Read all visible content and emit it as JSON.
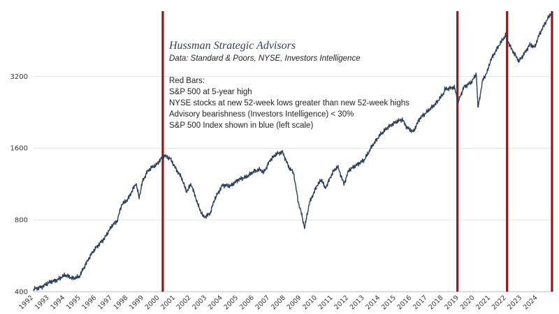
{
  "chart_data": {
    "type": "line",
    "title": "Hussman Strategic Advisors",
    "subtitle": "Data: Standard & Poors, NYSE, Investors Intelligence",
    "notes": [
      "Red Bars:",
      "S&P 500 at 5-year high",
      "NYSE stocks at new 52-week lows greater than new 52-week highs",
      "Advisory bearishness (Investors Intelligence) < 30%",
      "S&P 500 Index shown in blue (left scale)"
    ],
    "y_scale": "log",
    "ylim": [
      400,
      6000
    ],
    "y_ticks": [
      400,
      800,
      1600,
      3200
    ],
    "y_tick_labels": [
      "400",
      "800",
      "1600",
      "3200"
    ],
    "xlim": [
      1992.0,
      2024.9
    ],
    "x_ticks": [
      "1992",
      "1993",
      "1994",
      "1995",
      "1996",
      "1997",
      "1998",
      "1999",
      "2000",
      "2001",
      "2002",
      "2003",
      "2004",
      "2005",
      "2006",
      "2007",
      "2008",
      "2009",
      "2010",
      "2011",
      "2012",
      "2013",
      "2014",
      "2015",
      "2016",
      "2017",
      "2018",
      "2019",
      "2020",
      "2021",
      "2022",
      "2023",
      "2024"
    ],
    "grid": true,
    "series": [
      {
        "color": "#2c3e58",
        "x": [
          1992.0,
          1992.5,
          1993.0,
          1993.5,
          1994.0,
          1994.5,
          1994.9,
          1995.3,
          1995.7,
          1996.0,
          1996.5,
          1997.0,
          1997.3,
          1997.6,
          1997.8,
          1998.0,
          1998.5,
          1998.7,
          1998.9,
          1999.2,
          1999.5,
          1999.8,
          2000.0,
          2000.3,
          2000.7,
          2001.0,
          2001.4,
          2001.7,
          2002.0,
          2002.5,
          2002.8,
          2003.2,
          2003.5,
          2004.0,
          2004.5,
          2005.0,
          2005.5,
          2006.0,
          2006.4,
          2006.6,
          2007.0,
          2007.4,
          2007.8,
          2008.2,
          2008.5,
          2008.8,
          2009.0,
          2009.2,
          2009.5,
          2010.0,
          2010.3,
          2010.5,
          2011.0,
          2011.3,
          2011.7,
          2012.0,
          2012.5,
          2013.0,
          2013.5,
          2014.0,
          2014.5,
          2015.0,
          2015.4,
          2015.7,
          2016.1,
          2016.5,
          2017.0,
          2017.5,
          2018.0,
          2018.1,
          2018.7,
          2018.95,
          2019.3,
          2019.8,
          2020.1,
          2020.2,
          2020.5,
          2020.8,
          2021.0,
          2021.5,
          2021.95,
          2022.3,
          2022.8,
          2023.0,
          2023.5,
          2023.8,
          2024.1,
          2024.5,
          2024.85
        ],
        "y": [
          410,
          418,
          438,
          448,
          470,
          455,
          462,
          520,
          580,
          615,
          670,
          760,
          790,
          930,
          950,
          980,
          1140,
          990,
          1150,
          1270,
          1330,
          1360,
          1420,
          1490,
          1440,
          1320,
          1200,
          1050,
          1130,
          900,
          820,
          850,
          980,
          1120,
          1110,
          1180,
          1210,
          1280,
          1300,
          1260,
          1420,
          1510,
          1540,
          1330,
          1260,
          950,
          850,
          740,
          940,
          1120,
          1180,
          1080,
          1270,
          1340,
          1130,
          1290,
          1360,
          1430,
          1640,
          1820,
          1960,
          2060,
          2110,
          1950,
          1870,
          2130,
          2280,
          2450,
          2700,
          2820,
          2880,
          2500,
          2880,
          3030,
          3280,
          2350,
          3080,
          3350,
          3730,
          4280,
          4750,
          4200,
          3700,
          3860,
          4350,
          4230,
          4800,
          5400,
          5900
        ]
      }
    ],
    "markers": [
      2000.2,
      2018.9,
      2022.05,
      2024.95
    ],
    "marker_color": "#8b1a1a"
  }
}
